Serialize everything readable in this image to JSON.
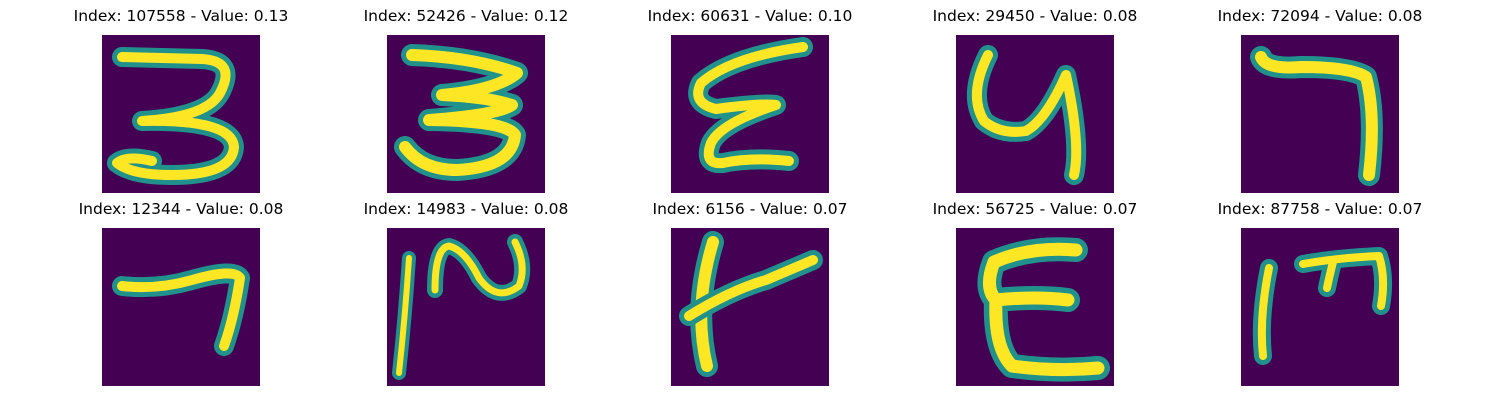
{
  "figure": {
    "background_color": "#ffffff",
    "colormap": {
      "low": "#440154",
      "mid": "#21918c",
      "high": "#fde725"
    },
    "panels": [
      {
        "index": "107558",
        "value": "0.13",
        "title": "Index: 107558 - Value: 0.13",
        "glyph": "digit-3"
      },
      {
        "index": "52426",
        "value": "0.12",
        "title": "Index: 52426 - Value: 0.12",
        "glyph": "digit-3"
      },
      {
        "index": "60631",
        "value": "0.10",
        "title": "Index: 60631 - Value: 0.10",
        "glyph": "epsilon"
      },
      {
        "index": "29450",
        "value": "0.08",
        "title": "Index: 29450 - Value: 0.08",
        "glyph": "letter-y"
      },
      {
        "index": "72094",
        "value": "0.08",
        "title": "Index: 72094 - Value: 0.08",
        "glyph": "digit-7"
      },
      {
        "index": "12344",
        "value": "0.08",
        "title": "Index: 12344 - Value: 0.08",
        "glyph": "digit-7"
      },
      {
        "index": "14983",
        "value": "0.08",
        "title": "Index: 14983 - Value: 0.08",
        "glyph": "curly-stroke"
      },
      {
        "index": "6156",
        "value": "0.07",
        "title": "Index: 6156 - Value: 0.07",
        "glyph": "letter-t"
      },
      {
        "index": "56725",
        "value": "0.07",
        "title": "Index: 56725 - Value: 0.07",
        "glyph": "letter-e"
      },
      {
        "index": "87758",
        "value": "0.07",
        "title": "Index: 87758 - Value: 0.07",
        "glyph": "letter-m"
      }
    ]
  }
}
